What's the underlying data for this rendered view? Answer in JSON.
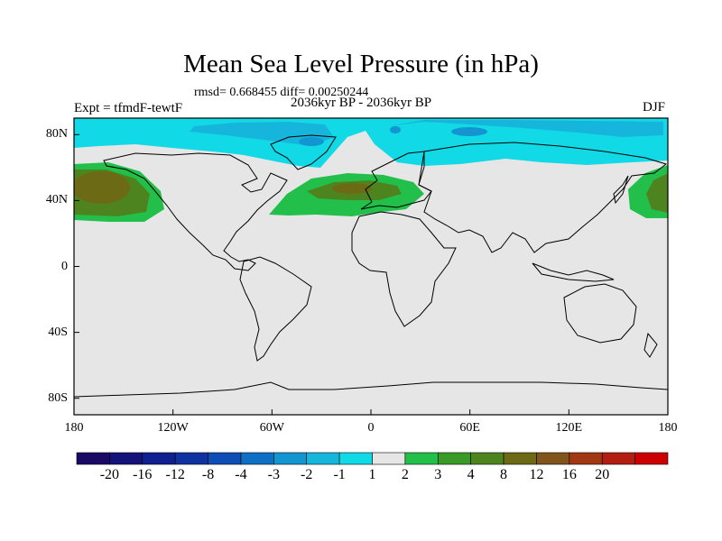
{
  "title": "Mean Sea Level Pressure (in hPa)",
  "stats": "rmsd= 0.668455 diff= 0.00250244",
  "period": "2036kyr BP - 2036kyr BP",
  "experiment": "Expt = tfmdF-tewtF",
  "season": "DJF",
  "map": {
    "lon_range": [
      -180,
      180
    ],
    "lat_range": [
      -90,
      90
    ],
    "lat_ticks": [
      {
        "label": "80N",
        "lat": 80
      },
      {
        "label": "40N",
        "lat": 40
      },
      {
        "label": "0",
        "lat": 0
      },
      {
        "label": "40S",
        "lat": -40
      },
      {
        "label": "80S",
        "lat": -80
      }
    ],
    "lon_ticks": [
      {
        "label": "180",
        "lon": -180
      },
      {
        "label": "120W",
        "lon": -120
      },
      {
        "label": "60W",
        "lon": -60
      },
      {
        "label": "0",
        "lon": 0
      },
      {
        "label": "60E",
        "lon": 60
      },
      {
        "label": "120E",
        "lon": 120
      },
      {
        "label": "180",
        "lon": 180
      }
    ],
    "background_color": "#e6e6e6"
  },
  "colorbar": {
    "levels": [
      "-20",
      "-16",
      "-12",
      "-8",
      "-4",
      "-3",
      "-2",
      "-1",
      "1",
      "2",
      "3",
      "4",
      "8",
      "12",
      "16",
      "20"
    ],
    "colors": [
      "#1a0a66",
      "#14137a",
      "#0f2090",
      "#0e33a0",
      "#0e4db5",
      "#0e70c5",
      "#1295d0",
      "#16b6dc",
      "#11d9e6",
      "#e6e6e6",
      "#22c04a",
      "#3a9a28",
      "#4e8420",
      "#6c6a14",
      "#80541a",
      "#a23812",
      "#b21e12",
      "#cc0000"
    ]
  }
}
